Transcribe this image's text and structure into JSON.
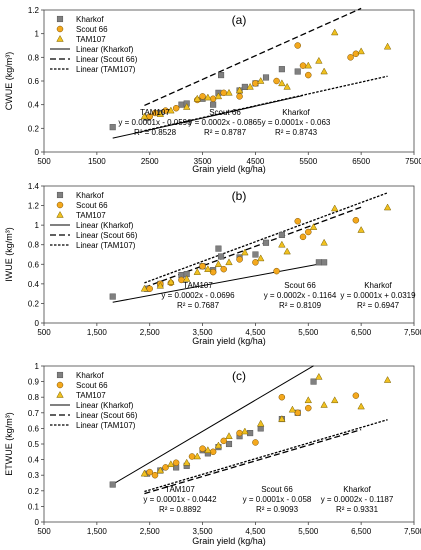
{
  "chart_data": [
    {
      "type": "scatter",
      "panel_label": "(a)",
      "xlabel": "Grain yield (kg/ha)",
      "ylabel": "CWUE (kg/m³)",
      "xlim": [
        500,
        7500
      ],
      "ylim": [
        0,
        1.2
      ],
      "xticks": [
        500,
        1500,
        2500,
        3500,
        4500,
        5500,
        6500,
        7500
      ],
      "xtick_labels": [
        "500",
        "1500",
        "2500",
        "3500",
        "4500",
        "5500",
        "6500",
        "7500"
      ],
      "yticks": [
        0,
        0.2,
        0.4,
        0.6,
        0.8,
        1.0,
        1.2
      ],
      "ytick_labels": [
        "0",
        "0.2",
        "0.4",
        "0.6",
        "0.8",
        "1",
        "1.2"
      ],
      "legend": {
        "placement": "top-left",
        "entries": [
          "Kharkof",
          "Scout 66",
          "TAM107",
          "Linear (Kharkof)",
          "Linear (Scout 66)",
          "Linear (TAM107)"
        ]
      },
      "series": [
        {
          "name": "Kharkof",
          "marker": "square",
          "color": "#808080",
          "points": [
            [
              1800,
              0.21
            ],
            [
              2450,
              0.29
            ],
            [
              2700,
              0.33
            ],
            [
              3100,
              0.4
            ],
            [
              3200,
              0.41
            ],
            [
              3500,
              0.45
            ],
            [
              3700,
              0.4
            ],
            [
              3800,
              0.5
            ],
            [
              3850,
              0.65
            ],
            [
              4200,
              0.52
            ],
            [
              4300,
              0.55
            ],
            [
              4500,
              0.58
            ],
            [
              4700,
              0.63
            ],
            [
              5000,
              0.7
            ],
            [
              5300,
              0.68
            ]
          ]
        },
        {
          "name": "Scout 66",
          "marker": "circle",
          "color": "#f4a81d",
          "points": [
            [
              2500,
              0.3
            ],
            [
              2600,
              0.33
            ],
            [
              2800,
              0.35
            ],
            [
              3000,
              0.37
            ],
            [
              3400,
              0.44
            ],
            [
              3500,
              0.47
            ],
            [
              3700,
              0.45
            ],
            [
              3900,
              0.5
            ],
            [
              4200,
              0.47
            ],
            [
              4500,
              0.58
            ],
            [
              4900,
              0.6
            ],
            [
              5300,
              0.9
            ],
            [
              5400,
              0.73
            ],
            [
              5500,
              0.65
            ],
            [
              6300,
              0.8
            ],
            [
              6400,
              0.83
            ]
          ]
        },
        {
          "name": "TAM107",
          "marker": "triangle",
          "color": "#f0c020",
          "points": [
            [
              2400,
              0.3
            ],
            [
              2700,
              0.32
            ],
            [
              2900,
              0.35
            ],
            [
              3200,
              0.38
            ],
            [
              3400,
              0.45
            ],
            [
              3600,
              0.46
            ],
            [
              3800,
              0.47
            ],
            [
              4000,
              0.5
            ],
            [
              4200,
              0.52
            ],
            [
              4400,
              0.55
            ],
            [
              4600,
              0.6
            ],
            [
              5000,
              0.58
            ],
            [
              5100,
              0.55
            ],
            [
              5500,
              0.73
            ],
            [
              5700,
              0.77
            ],
            [
              5800,
              0.68
            ],
            [
              6000,
              1.01
            ],
            [
              6500,
              0.85
            ],
            [
              7000,
              0.89
            ]
          ]
        }
      ],
      "trendlines": [
        {
          "name": "Linear (Kharkof)",
          "style": "solid",
          "x_range": [
            1800,
            5400
          ],
          "equation": "y = 0.0001x - 0.063",
          "r2": "R² = 0.8743",
          "label": "Kharkof"
        },
        {
          "name": "Linear (Scout 66)",
          "style": "dashed",
          "x_range": [
            2400,
            6500
          ],
          "equation": "y = 0.0002x - 0.0865",
          "r2": "R² = 0.8787",
          "label": "Scout 66"
        },
        {
          "name": "Linear (TAM107)",
          "style": "dotted",
          "x_range": [
            2400,
            7000
          ],
          "equation": "y = 0.0001x - 0.0596",
          "r2": "R² = 0.8528",
          "label": "TAM107"
        }
      ]
    },
    {
      "type": "scatter",
      "panel_label": "(b)",
      "xlabel": "Grain yield (kg/ha)",
      "ylabel": "IWUE (kg/m³)",
      "xlim": [
        500,
        7500
      ],
      "ylim": [
        0,
        1.4
      ],
      "xticks": [
        500,
        1500,
        2500,
        3500,
        4500,
        5500,
        6500,
        7500
      ],
      "xtick_labels": [
        "500",
        "1,500",
        "2,500",
        "3,500",
        "4,500",
        "5,500",
        "6,500",
        "7,500"
      ],
      "yticks": [
        0,
        0.2,
        0.4,
        0.6,
        0.8,
        1.0,
        1.2,
        1.4
      ],
      "ytick_labels": [
        "0",
        "0.2",
        "0.4",
        "0.6",
        "0.8",
        "1",
        "1.2",
        "1.4"
      ],
      "legend": {
        "placement": "top-left",
        "entries": [
          "Kharkof",
          "Scout 66",
          "TAM107",
          "Linear (Kharkof)",
          "Linear (Scout 66)",
          "Linear (TAM107)"
        ]
      },
      "series": [
        {
          "name": "Kharkof",
          "marker": "square",
          "color": "#808080",
          "points": [
            [
              1800,
              0.27
            ],
            [
              2450,
              0.35
            ],
            [
              2700,
              0.4
            ],
            [
              3100,
              0.49
            ],
            [
              3200,
              0.5
            ],
            [
              3500,
              0.58
            ],
            [
              3700,
              0.54
            ],
            [
              3800,
              0.76
            ],
            [
              3850,
              0.68
            ],
            [
              4200,
              0.67
            ],
            [
              4500,
              0.7
            ],
            [
              4700,
              0.82
            ],
            [
              5000,
              0.9
            ],
            [
              5700,
              0.62
            ],
            [
              5800,
              0.62
            ]
          ]
        },
        {
          "name": "Scout 66",
          "marker": "circle",
          "color": "#f4a81d",
          "points": [
            [
              2500,
              0.35
            ],
            [
              2700,
              0.4
            ],
            [
              2900,
              0.41
            ],
            [
              3100,
              0.44
            ],
            [
              3500,
              0.58
            ],
            [
              3700,
              0.52
            ],
            [
              3900,
              0.55
            ],
            [
              4200,
              0.65
            ],
            [
              4500,
              0.62
            ],
            [
              4900,
              0.53
            ],
            [
              5300,
              1.04
            ],
            [
              5400,
              0.88
            ],
            [
              5500,
              0.93
            ],
            [
              6400,
              1.05
            ]
          ]
        },
        {
          "name": "TAM107",
          "marker": "triangle",
          "color": "#f0c020",
          "points": [
            [
              2400,
              0.35
            ],
            [
              2700,
              0.38
            ],
            [
              2900,
              0.42
            ],
            [
              3200,
              0.45
            ],
            [
              3400,
              0.52
            ],
            [
              3600,
              0.55
            ],
            [
              3800,
              0.6
            ],
            [
              4000,
              0.62
            ],
            [
              4300,
              0.72
            ],
            [
              4600,
              0.66
            ],
            [
              5000,
              0.8
            ],
            [
              5100,
              0.73
            ],
            [
              5600,
              0.98
            ],
            [
              5800,
              0.82
            ],
            [
              6000,
              1.17
            ],
            [
              6500,
              0.95
            ],
            [
              7000,
              1.18
            ]
          ]
        }
      ],
      "trendlines": [
        {
          "name": "Linear (Kharkof)",
          "style": "solid",
          "x_range": [
            1800,
            5800
          ],
          "equation": "y = 0.0001x + 0.0319",
          "r2": "R² = 0.6947",
          "label": "Kharkof"
        },
        {
          "name": "Linear (Scout 66)",
          "style": "dashed",
          "x_range": [
            2400,
            6500
          ],
          "equation": "y = 0.0002x - 0.1164",
          "r2": "R² = 0.8109",
          "label": "Scout 66"
        },
        {
          "name": "Linear (TAM107)",
          "style": "dotted",
          "x_range": [
            2400,
            7000
          ],
          "equation": "y = 0.0002x - 0.0696",
          "r2": "R² = 0.7687",
          "label": "TAM107"
        }
      ]
    },
    {
      "type": "scatter",
      "panel_label": "(c)",
      "xlabel": "Grain yield (kg/ha)",
      "ylabel": "ETWUE (kg/m³)",
      "xlim": [
        500,
        7500
      ],
      "ylim": [
        0,
        1.0
      ],
      "xticks": [
        500,
        1500,
        2500,
        3500,
        4500,
        5500,
        6500,
        7500
      ],
      "xtick_labels": [
        "500",
        "1,500",
        "2,500",
        "3,500",
        "4,500",
        "5,500",
        "6,500",
        "7,500"
      ],
      "yticks": [
        0,
        0.1,
        0.2,
        0.3,
        0.4,
        0.5,
        0.6,
        0.7,
        0.8,
        0.9,
        1.0
      ],
      "ytick_labels": [
        "0",
        "0.1",
        "0.2",
        "0.3",
        "0.4",
        "0.5",
        "0.6",
        "0.7",
        "0.8",
        "0.9",
        "1"
      ],
      "legend": {
        "placement": "top-left",
        "entries": [
          "Kharkof",
          "Scout 66",
          "TAM107",
          "Linear (Kharkof)",
          "Linear (Scout 66)",
          "Linear (TAM107)"
        ]
      },
      "series": [
        {
          "name": "Kharkof",
          "marker": "square",
          "color": "#808080",
          "points": [
            [
              1800,
              0.24
            ],
            [
              2450,
              0.31
            ],
            [
              2700,
              0.33
            ],
            [
              3000,
              0.35
            ],
            [
              3200,
              0.36
            ],
            [
              3500,
              0.46
            ],
            [
              3600,
              0.44
            ],
            [
              3800,
              0.48
            ],
            [
              4000,
              0.5
            ],
            [
              4200,
              0.55
            ],
            [
              4400,
              0.57
            ],
            [
              4600,
              0.6
            ],
            [
              5000,
              0.66
            ],
            [
              5300,
              0.7
            ],
            [
              5600,
              0.9
            ]
          ]
        },
        {
          "name": "Scout 66",
          "marker": "circle",
          "color": "#f4a81d",
          "points": [
            [
              2500,
              0.32
            ],
            [
              2600,
              0.3
            ],
            [
              2800,
              0.35
            ],
            [
              3000,
              0.38
            ],
            [
              3300,
              0.42
            ],
            [
              3500,
              0.47
            ],
            [
              3700,
              0.45
            ],
            [
              3900,
              0.52
            ],
            [
              4200,
              0.57
            ],
            [
              4500,
              0.51
            ],
            [
              5000,
              0.8
            ],
            [
              5300,
              0.7
            ],
            [
              5500,
              0.73
            ],
            [
              6400,
              0.81
            ]
          ]
        },
        {
          "name": "TAM107",
          "marker": "triangle",
          "color": "#f0c020",
          "points": [
            [
              2400,
              0.31
            ],
            [
              2700,
              0.33
            ],
            [
              2900,
              0.37
            ],
            [
              3200,
              0.38
            ],
            [
              3400,
              0.42
            ],
            [
              3600,
              0.46
            ],
            [
              3800,
              0.49
            ],
            [
              4000,
              0.55
            ],
            [
              4300,
              0.58
            ],
            [
              4600,
              0.63
            ],
            [
              5000,
              0.66
            ],
            [
              5200,
              0.72
            ],
            [
              5500,
              0.78
            ],
            [
              5700,
              0.93
            ],
            [
              5800,
              0.75
            ],
            [
              6000,
              0.78
            ],
            [
              6500,
              0.74
            ],
            [
              7000,
              0.91
            ]
          ]
        }
      ],
      "trendlines": [
        {
          "name": "Linear (Kharkof)",
          "style": "solid",
          "x_range": [
            1800,
            5600
          ],
          "equation": "y = 0.0002x - 0.1187",
          "r2": "R² = 0.9331",
          "label": "Kharkof"
        },
        {
          "name": "Linear (Scout 66)",
          "style": "dashed",
          "x_range": [
            2400,
            6500
          ],
          "equation": "y = 0.0001x - 0.058",
          "r2": "R² = 0.9093",
          "label": "Scout 66"
        },
        {
          "name": "Linear (TAM107)",
          "style": "dotted",
          "x_range": [
            2400,
            7000
          ],
          "equation": "y = 0.0001x - 0.0442",
          "r2": "R² = 0.8892",
          "label": "TAM107"
        }
      ]
    }
  ]
}
